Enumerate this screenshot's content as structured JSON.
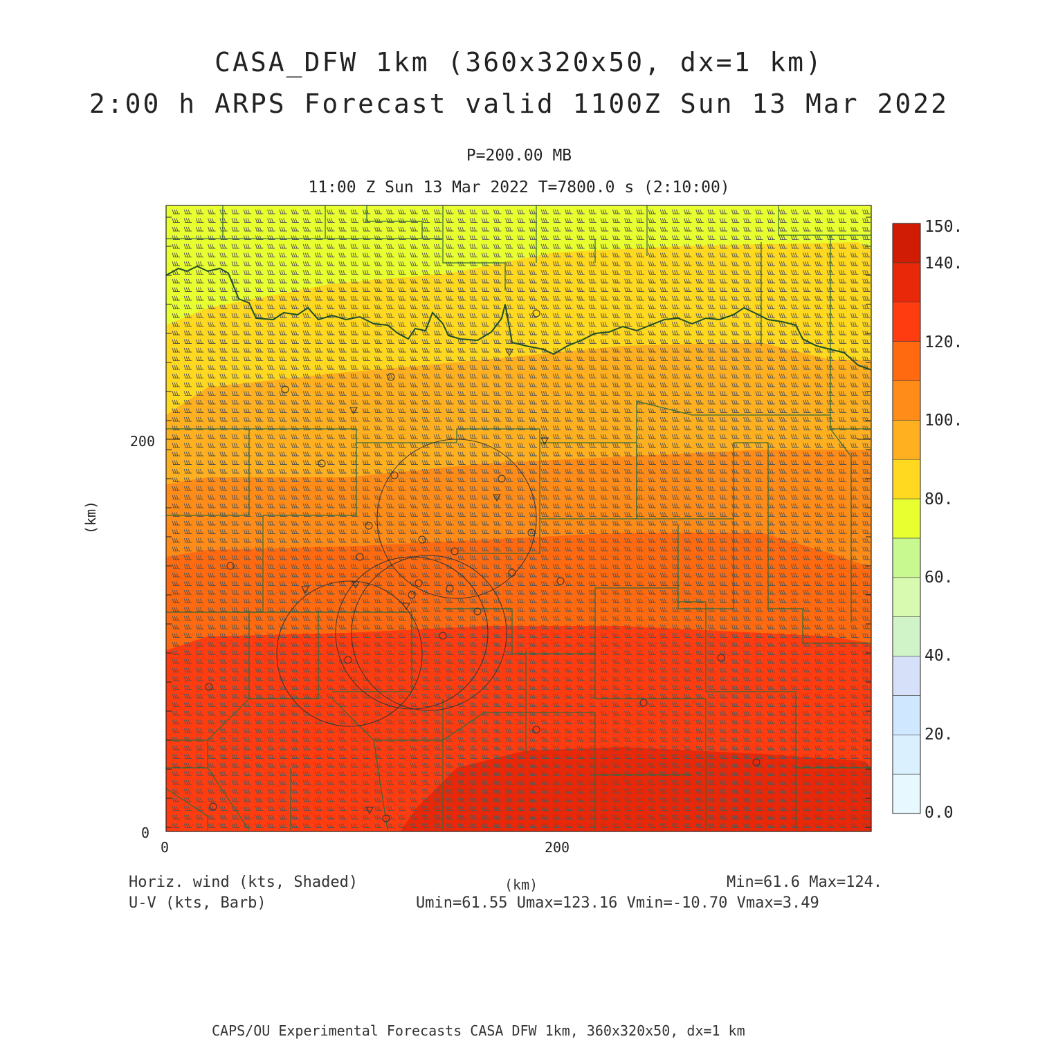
{
  "header": {
    "title_line1": "CASA_DFW 1km (360x320x50, dx=1 km)",
    "title_line2": "2:00 h ARPS Forecast valid 1100Z Sun 13 Mar 2022",
    "level": "P=200.00 MB",
    "time": "11:00 Z Sun 13 Mar 2022   T=7800.0 s (2:10:00)"
  },
  "axes": {
    "x_ticks": [
      "0",
      "200"
    ],
    "y_ticks": [
      "0",
      "200"
    ],
    "x_label": "(km)",
    "y_label": "(km)"
  },
  "colorbar": {
    "labels": [
      "150.",
      "140.",
      "120.",
      "100.",
      "80.",
      "60.",
      "40.",
      "20.",
      "0.0"
    ],
    "colors": [
      "#e8f8ff",
      "#daf0ff",
      "#cfe8ff",
      "#d6e0f8",
      "#d0f4c8",
      "#d8fab0",
      "#c8f890",
      "#e8ff30",
      "#ffd820",
      "#ffb020",
      "#ff8c18",
      "#ff6a10",
      "#ff3c10",
      "#e82808",
      "#d01c04",
      "#b00000"
    ]
  },
  "footer": {
    "field_shaded": "Horiz. wind (kts, Shaded)",
    "field_barb": "U-V (kts, Barb)",
    "axis_unit": "(km)",
    "minmax": "Min=61.6 Max=124.",
    "uv_stats": "Umin=61.55 Umax=123.16 Vmin=-10.70 Vmax=3.49",
    "credit": "CAPS/OU Experimental Forecasts  CASA DFW 1km, 360x320x50, dx=1 km"
  },
  "map_data": {
    "type": "shaded wind speed field with wind barbs",
    "variable": "Horizontal wind speed (kts)",
    "wind_speed_bands_north_to_south": [
      {
        "range_kts": [
          60,
          70
        ],
        "color": "#e8ff30"
      },
      {
        "range_kts": [
          70,
          80
        ],
        "color": "#ffd820"
      },
      {
        "range_kts": [
          80,
          90
        ],
        "color": "#ffb020"
      },
      {
        "range_kts": [
          90,
          100
        ],
        "color": "#ff8c18"
      },
      {
        "range_kts": [
          100,
          110
        ],
        "color": "#ff6a10"
      },
      {
        "range_kts": [
          110,
          120
        ],
        "color": "#ff3c10"
      },
      {
        "range_kts": [
          120,
          130
        ],
        "color": "#e82808"
      }
    ],
    "min": 61.6,
    "max": 124,
    "x_range_km": [
      0,
      360
    ],
    "y_range_km": [
      0,
      320
    ],
    "boundary_color": "#2e6b3a"
  }
}
